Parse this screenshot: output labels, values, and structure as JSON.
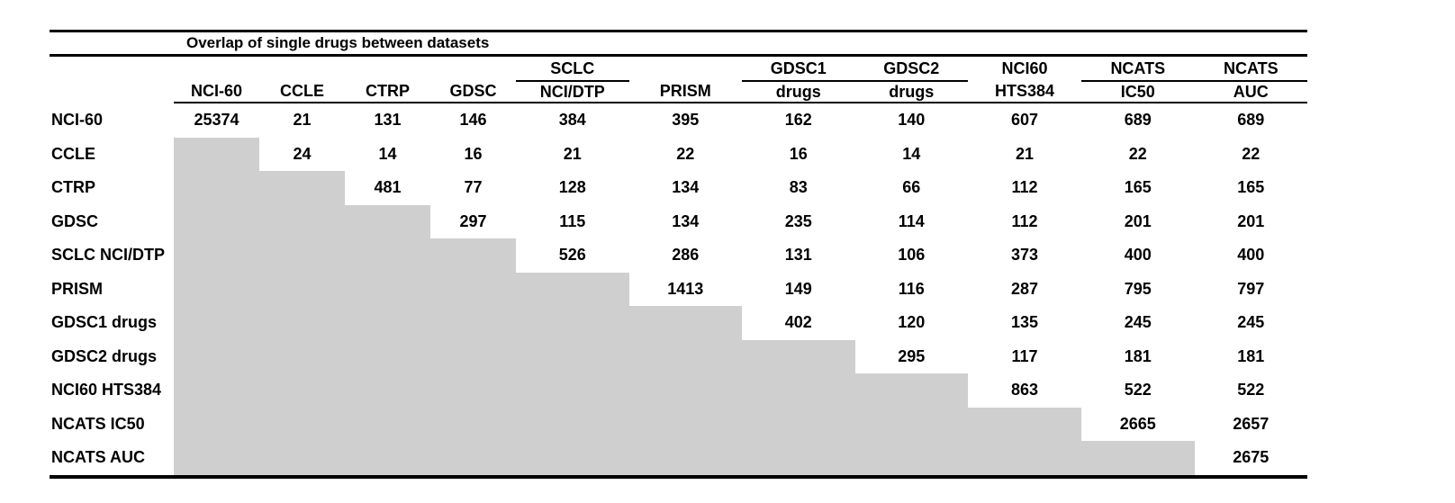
{
  "table": {
    "title": "Overlap of single drugs between datasets",
    "header_groups": {
      "sclc": "SCLC",
      "gdsc1": "GDSC1",
      "gdsc2": "GDSC2",
      "nci60": "NCI60",
      "ncats_ic50": "NCATS",
      "ncats_auc": "NCATS"
    },
    "col_headers": [
      "NCI-60",
      "CCLE",
      "CTRP",
      "GDSC",
      "NCI/DTP",
      "PRISM",
      "drugs",
      "drugs",
      "HTS384",
      "IC50",
      "AUC"
    ],
    "rows": [
      {
        "label": "NCI-60",
        "values": [
          "25374",
          "21",
          "131",
          "146",
          "384",
          "395",
          "162",
          "140",
          "607",
          "689",
          "689"
        ]
      },
      {
        "label": "CCLE",
        "values": [
          null,
          "24",
          "14",
          "16",
          "21",
          "22",
          "16",
          "14",
          "21",
          "22",
          "22"
        ]
      },
      {
        "label": "CTRP",
        "values": [
          null,
          null,
          "481",
          "77",
          "128",
          "134",
          "83",
          "66",
          "112",
          "165",
          "165"
        ]
      },
      {
        "label": "GDSC",
        "values": [
          null,
          null,
          null,
          "297",
          "115",
          "134",
          "235",
          "114",
          "112",
          "201",
          "201"
        ]
      },
      {
        "label": "SCLC NCI/DTP",
        "values": [
          null,
          null,
          null,
          null,
          "526",
          "286",
          "131",
          "106",
          "373",
          "400",
          "400"
        ]
      },
      {
        "label": "PRISM",
        "values": [
          null,
          null,
          null,
          null,
          null,
          "1413",
          "149",
          "116",
          "287",
          "795",
          "797"
        ]
      },
      {
        "label": "GDSC1 drugs",
        "values": [
          null,
          null,
          null,
          null,
          null,
          null,
          "402",
          "120",
          "135",
          "245",
          "245"
        ]
      },
      {
        "label": "GDSC2 drugs",
        "values": [
          null,
          null,
          null,
          null,
          null,
          null,
          null,
          "295",
          "117",
          "181",
          "181"
        ]
      },
      {
        "label": "NCI60 HTS384",
        "values": [
          null,
          null,
          null,
          null,
          null,
          null,
          null,
          null,
          "863",
          "522",
          "522"
        ]
      },
      {
        "label": "NCATS IC50",
        "values": [
          null,
          null,
          null,
          null,
          null,
          null,
          null,
          null,
          null,
          "2665",
          "2657"
        ]
      },
      {
        "label": "NCATS AUC",
        "values": [
          null,
          null,
          null,
          null,
          null,
          null,
          null,
          null,
          null,
          null,
          "2675"
        ]
      }
    ],
    "colors": {
      "masked_fill": "#cfcfcf",
      "line": "#000000",
      "text": "#000000",
      "background": "#ffffff"
    }
  }
}
